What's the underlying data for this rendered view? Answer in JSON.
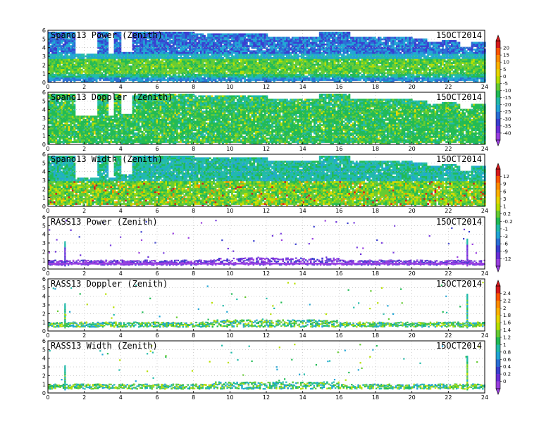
{
  "figure": {
    "date": "15OCT2014"
  },
  "chart_data": [
    {
      "type": "heatmap",
      "title": "Spano13  Power  (Zenith)",
      "date": "15OCT2014",
      "xlim": [
        0,
        24
      ],
      "ylim": [
        0,
        6
      ],
      "xticks": [
        "0",
        "2",
        "4",
        "6",
        "8",
        "10",
        "12",
        "14",
        "16",
        "18",
        "20",
        "22",
        "24"
      ],
      "yticks": [
        "0",
        "1",
        "2",
        "3",
        "4",
        "5",
        "6"
      ],
      "grid": true,
      "colorbar": "power",
      "data_kind": "spano_power"
    },
    {
      "type": "heatmap",
      "title": "Spano13  Doppler  (Zenith)",
      "date": "15OCT2014",
      "xlim": [
        0,
        24
      ],
      "ylim": [
        0,
        6
      ],
      "xticks": [
        "0",
        "2",
        "4",
        "6",
        "8",
        "10",
        "12",
        "14",
        "16",
        "18",
        "20",
        "22",
        "24"
      ],
      "yticks": [
        "0",
        "1",
        "2",
        "3",
        "4",
        "5",
        "6"
      ],
      "grid": true,
      "colorbar": "power",
      "data_kind": "spano_doppler"
    },
    {
      "type": "heatmap",
      "title": "Spano13  Width  (Zenith)",
      "date": "15OCT2014",
      "xlim": [
        0,
        24
      ],
      "ylim": [
        0,
        6
      ],
      "xticks": [
        "0",
        "2",
        "4",
        "6",
        "8",
        "10",
        "12",
        "14",
        "16",
        "18",
        "20",
        "22",
        "24"
      ],
      "yticks": [
        "0",
        "1",
        "2",
        "3",
        "4",
        "5",
        "6"
      ],
      "grid": true,
      "colorbar": "width",
      "data_kind": "spano_width"
    },
    {
      "type": "heatmap",
      "title": "RASS13  Power  (Zenith)",
      "date": "15OCT2014",
      "xlim": [
        0,
        24
      ],
      "ylim": [
        0,
        6
      ],
      "xticks": [
        "0",
        "2",
        "4",
        "6",
        "8",
        "10",
        "12",
        "14",
        "16",
        "18",
        "20",
        "22",
        "24"
      ],
      "yticks": [
        "0",
        "1",
        "2",
        "3",
        "4",
        "5",
        "6"
      ],
      "grid": true,
      "colorbar": "width",
      "data_kind": "rass_power"
    },
    {
      "type": "heatmap",
      "title": "RASS13  Doppler  (Zenith)",
      "date": "15OCT2014",
      "xlim": [
        0,
        24
      ],
      "ylim": [
        0,
        6
      ],
      "xticks": [
        "0",
        "2",
        "4",
        "6",
        "8",
        "10",
        "12",
        "14",
        "16",
        "18",
        "20",
        "22",
        "24"
      ],
      "yticks": [
        "0",
        "1",
        "2",
        "3",
        "4",
        "5",
        "6"
      ],
      "grid": true,
      "colorbar": "rass",
      "data_kind": "rass_doppler"
    },
    {
      "type": "heatmap",
      "title": "RASS13  Width  (Zenith)",
      "date": "15OCT2014",
      "xlim": [
        0,
        24
      ],
      "ylim": [
        0,
        6
      ],
      "xticks": [
        "0",
        "2",
        "4",
        "6",
        "8",
        "10",
        "12",
        "14",
        "16",
        "18",
        "20",
        "22",
        "24"
      ],
      "yticks": [
        "0",
        "1",
        "2",
        "3",
        "4",
        "5",
        "6"
      ],
      "grid": true,
      "colorbar": "rass",
      "data_kind": "rass_width"
    }
  ],
  "colorbars": {
    "power": {
      "labels": [
        "20",
        "15",
        "10",
        "5",
        "0",
        "-5",
        "-10",
        "-15",
        "-20",
        "-25",
        "-30",
        "-35",
        "-40"
      ],
      "colors": [
        "#d7191c",
        "#ff5500",
        "#ff8c00",
        "#ffb300",
        "#e8d600",
        "#b8e000",
        "#66cc33",
        "#22bb55",
        "#22bbaa",
        "#22a6d6",
        "#2a6fd6",
        "#3a3fd0",
        "#6a2fd8",
        "#9a3fe0"
      ]
    },
    "width": {
      "labels": [
        "12",
        "9",
        "6",
        "3",
        "1",
        "0.2",
        "-0.2",
        "-1",
        "-3",
        "-6",
        "-9",
        "-12"
      ],
      "colors": [
        "#d7191c",
        "#ff5500",
        "#ff8c00",
        "#ffb300",
        "#e8d600",
        "#b8e000",
        "#66cc33",
        "#22bb55",
        "#22bbaa",
        "#22a6d6",
        "#2a6fd6",
        "#3a3fd0",
        "#6a2fd8",
        "#9a3fe0"
      ]
    },
    "rass": {
      "labels": [
        "2.4",
        "2.2",
        "2",
        "1.8",
        "1.6",
        "1.4",
        "1.2",
        "1",
        "0.8",
        "0.6",
        "0.4",
        "0.2",
        "0"
      ],
      "colors": [
        "#d7191c",
        "#ff5500",
        "#ff8c00",
        "#ffb300",
        "#e8d600",
        "#b8e000",
        "#66cc33",
        "#22bb55",
        "#22bbaa",
        "#22a6d6",
        "#2a6fd6",
        "#3a3fd0",
        "#6a2fd8",
        "#9a3fe0"
      ]
    }
  }
}
